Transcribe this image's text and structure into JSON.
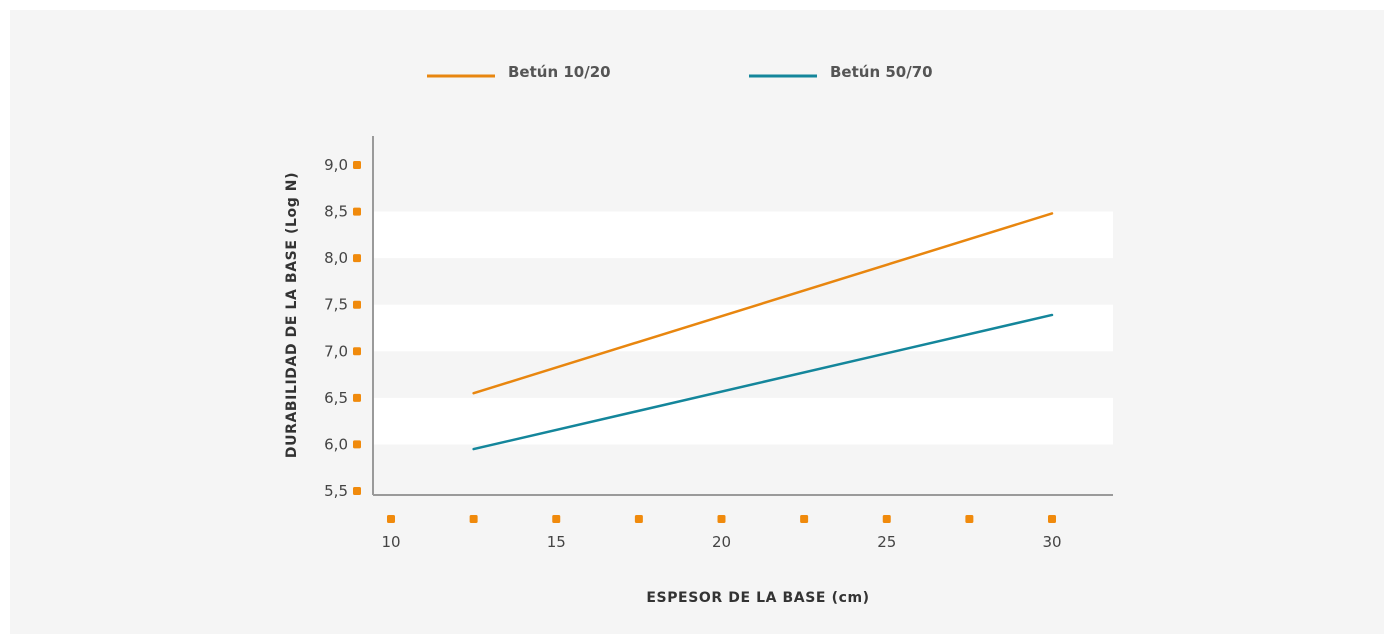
{
  "chart_data": {
    "type": "line",
    "xlabel": "ESPESOR DE LA BASE (cm)",
    "ylabel": "DURABILIDAD DE LA BASE (Log N)",
    "xlim": [
      10,
      30
    ],
    "ylim": [
      5.5,
      9.0
    ],
    "x_ticks": [
      10,
      12.5,
      15,
      17.5,
      20,
      22.5,
      25,
      27.5,
      30
    ],
    "x_tick_labels": [
      {
        "value": 10,
        "label": "10"
      },
      {
        "value": 15,
        "label": "15"
      },
      {
        "value": 20,
        "label": "20"
      },
      {
        "value": 25,
        "label": "25"
      },
      {
        "value": 30,
        "label": "30"
      }
    ],
    "y_ticks": [
      {
        "value": 5.5,
        "label": "5,5"
      },
      {
        "value": 6.0,
        "label": "6,0"
      },
      {
        "value": 6.5,
        "label": "6,5"
      },
      {
        "value": 7.0,
        "label": "7,0"
      },
      {
        "value": 7.5,
        "label": "7,5"
      },
      {
        "value": 8.0,
        "label": "8,0"
      },
      {
        "value": 8.5,
        "label": "8,5"
      },
      {
        "value": 9.0,
        "label": "9,0"
      }
    ],
    "bands": [
      [
        6.0,
        6.5
      ],
      [
        7.0,
        7.5
      ],
      [
        8.0,
        8.5
      ]
    ],
    "legend_position": "top",
    "series": [
      {
        "name": "Betún 10/20",
        "color": "#e8860f",
        "x": [
          12.5,
          30
        ],
        "y": [
          6.55,
          8.48
        ]
      },
      {
        "name": "Betún 50/70",
        "color": "#14869b",
        "x": [
          12.5,
          30
        ],
        "y": [
          5.95,
          7.39
        ]
      }
    ],
    "colors": {
      "tick_marker": "#f08a0c",
      "axis": "#9a9a9a",
      "band": "#ffffff",
      "background": "#f5f5f5"
    }
  }
}
